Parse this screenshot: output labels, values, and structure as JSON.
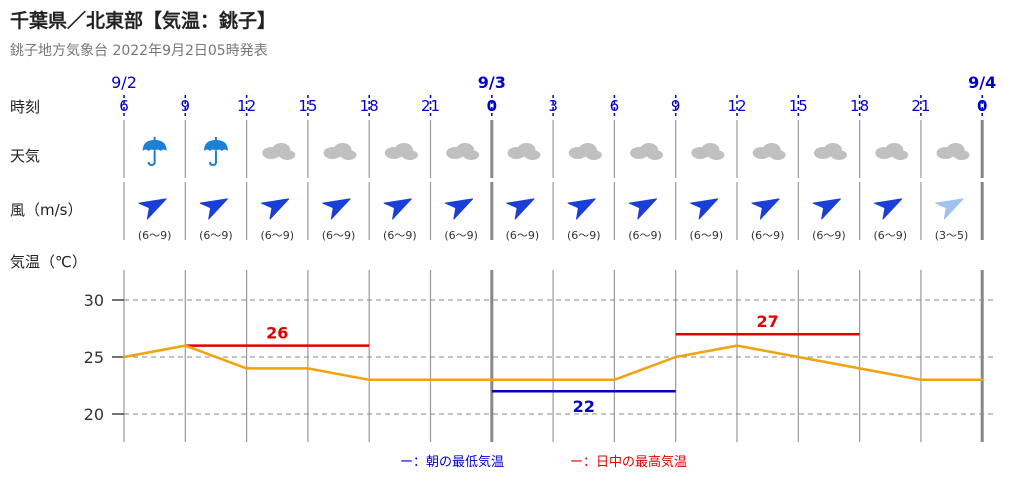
{
  "title": "千葉県／北東部【気温：銚子】",
  "subtitle": "銚子地方気象台 2022年9月2日05時発表",
  "row_labels": {
    "time": "時刻",
    "weather": "天気",
    "wind": "風（m/s）",
    "temp": "気温（℃）"
  },
  "dates": [
    {
      "label": "9/2",
      "index": 0,
      "bold": false
    },
    {
      "label": "9/3",
      "index": 6,
      "bold": true
    },
    {
      "label": "9/4",
      "index": 14,
      "bold": true
    }
  ],
  "hours": [
    "6",
    "9",
    "12",
    "15",
    "18",
    "21",
    "0",
    "3",
    "6",
    "9",
    "12",
    "15",
    "18",
    "21",
    "0"
  ],
  "weather_icons": [
    "umbrella-icon",
    "umbrella-icon",
    "cloud-icon",
    "cloud-icon",
    "cloud-icon",
    "cloud-icon",
    "cloud-icon",
    "cloud-icon",
    "cloud-icon",
    "cloud-icon",
    "cloud-icon",
    "cloud-icon",
    "cloud-icon",
    "cloud-icon"
  ],
  "wind": [
    {
      "speed": "(6～9)",
      "strong": true
    },
    {
      "speed": "(6～9)",
      "strong": true
    },
    {
      "speed": "(6～9)",
      "strong": true
    },
    {
      "speed": "(6～9)",
      "strong": true
    },
    {
      "speed": "(6～9)",
      "strong": true
    },
    {
      "speed": "(6～9)",
      "strong": true
    },
    {
      "speed": "(6～9)",
      "strong": true
    },
    {
      "speed": "(6～9)",
      "strong": true
    },
    {
      "speed": "(6～9)",
      "strong": true
    },
    {
      "speed": "(6～9)",
      "strong": true
    },
    {
      "speed": "(6～9)",
      "strong": true
    },
    {
      "speed": "(6～9)",
      "strong": true
    },
    {
      "speed": "(6～9)",
      "strong": true
    },
    {
      "speed": "(3～5)",
      "strong": false
    }
  ],
  "colors": {
    "temp_line": "#f0a30a",
    "max_line": "#e00000",
    "min_line": "#0000cc",
    "date_blue": "#0000cc",
    "grid": "#999999",
    "wind_strong": "#1a3fd6",
    "wind_weak": "#9fc3ee",
    "umbrella": "#1e7fd6",
    "cloud": "#c0c0c0"
  },
  "chart_data": {
    "type": "line",
    "x": [
      "9/2 6",
      "9/2 9",
      "9/2 12",
      "9/2 15",
      "9/2 18",
      "9/2 21",
      "9/3 0",
      "9/3 3",
      "9/3 6",
      "9/3 9",
      "9/3 12",
      "9/3 15",
      "9/3 18",
      "9/3 21",
      "9/4 0"
    ],
    "series": [
      {
        "values": [
          25,
          26,
          24,
          24,
          23,
          23,
          23,
          23,
          23,
          25,
          26,
          25,
          24,
          23,
          23
        ]
      }
    ],
    "yticks": [
      20,
      25,
      30
    ],
    "ylim": [
      18,
      32
    ],
    "segments": [
      {
        "kind": "max",
        "label": "26",
        "x_start": "9/2 9",
        "x_end": "9/2 18",
        "value": 26
      },
      {
        "kind": "min",
        "label": "22",
        "x_start": "9/3 0",
        "x_end": "9/3 9",
        "value": 22
      },
      {
        "kind": "max",
        "label": "27",
        "x_start": "9/3 9",
        "x_end": "9/3 18",
        "value": 27
      }
    ],
    "legend": {
      "min": "ー：朝の最低気温",
      "max": "ー：日中の最高気温"
    }
  }
}
